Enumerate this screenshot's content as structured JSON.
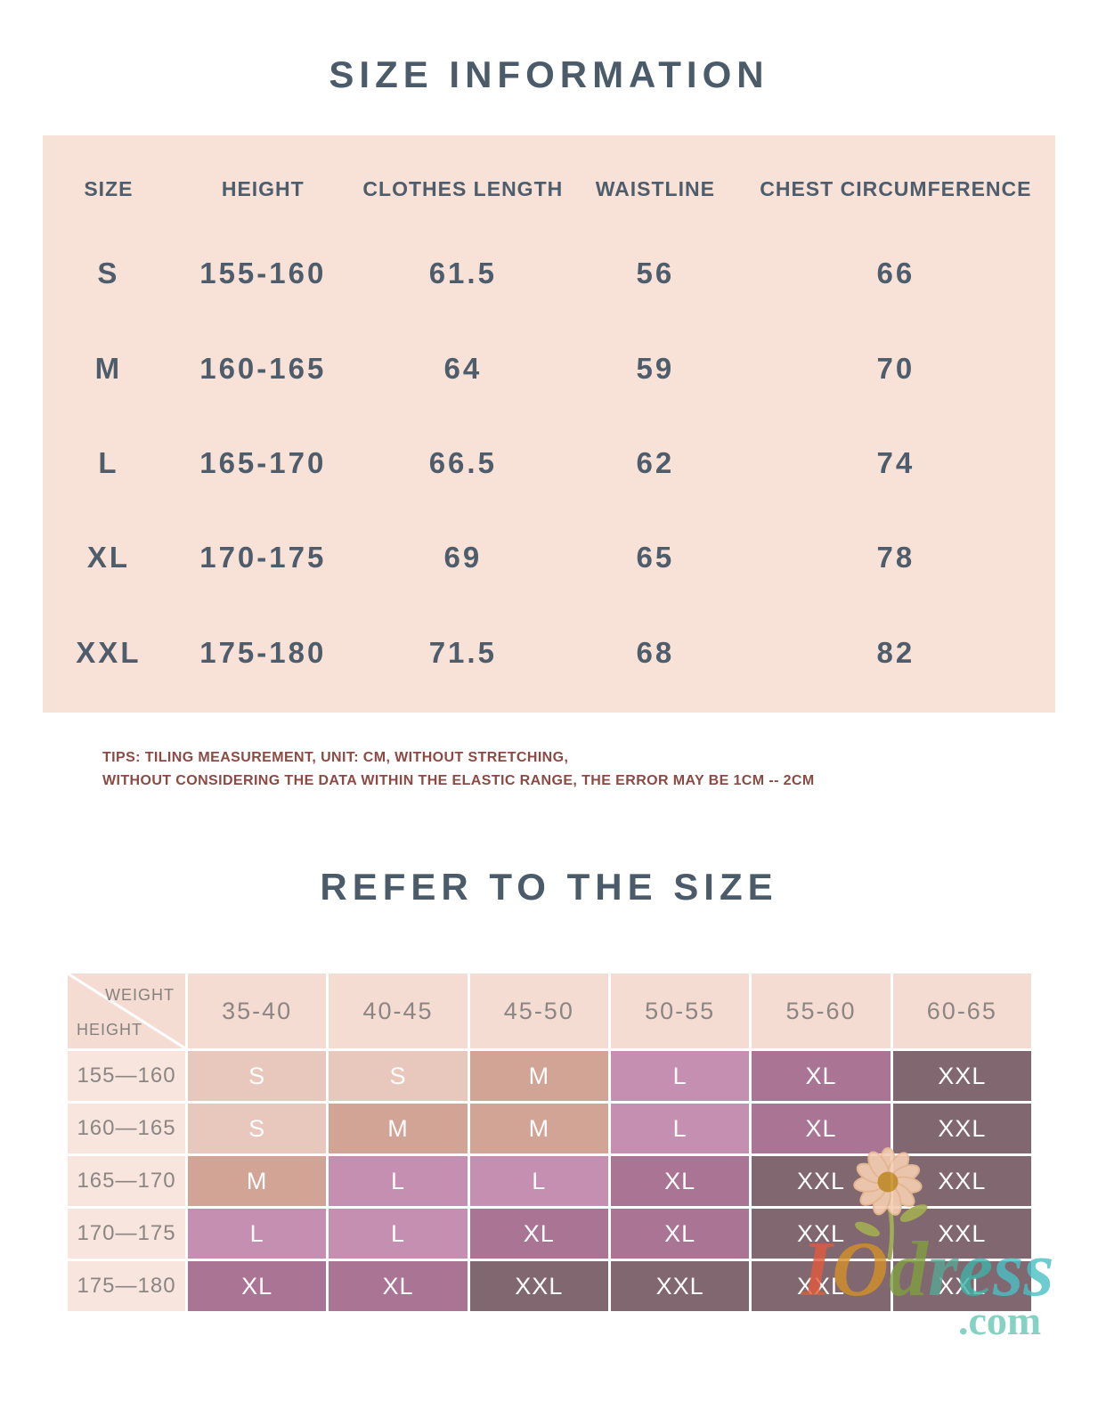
{
  "section1": {
    "title": "SIZE INFORMATION",
    "table": {
      "headers": [
        "SIZE",
        "HEIGHT",
        "CLOTHES LENGTH",
        "WAISTLINE",
        "CHEST CIRCUMFERENCE"
      ],
      "rows": [
        [
          "S",
          "155-160",
          "61.5",
          "56",
          "66"
        ],
        [
          "M",
          "160-165",
          "64",
          "59",
          "70"
        ],
        [
          "L",
          "165-170",
          "66.5",
          "62",
          "74"
        ],
        [
          "XL",
          "170-175",
          "69",
          "65",
          "78"
        ],
        [
          "XXL",
          "175-180",
          "71.5",
          "68",
          "82"
        ]
      ]
    },
    "tips_line1": "TIPS: TILING MEASUREMENT, UNIT: CM, WITHOUT STRETCHING,",
    "tips_line2": "WITHOUT CONSIDERING THE DATA WITHIN THE ELASTIC RANGE, THE ERROR MAY BE 1CM -- 2CM"
  },
  "section2": {
    "title": "REFER TO THE SIZE",
    "table": {
      "corner_top": "WEIGHT",
      "corner_bottom": "HEIGHT",
      "weight_columns": [
        "35-40",
        "40-45",
        "45-50",
        "50-55",
        "55-60",
        "60-65"
      ],
      "rows": [
        {
          "height": "155—160",
          "sizes": [
            "S",
            "S",
            "M",
            "L",
            "XL",
            "XXL"
          ]
        },
        {
          "height": "160—165",
          "sizes": [
            "S",
            "M",
            "M",
            "L",
            "XL",
            "XXL"
          ]
        },
        {
          "height": "165—170",
          "sizes": [
            "M",
            "L",
            "L",
            "XL",
            "XXL",
            "XXL"
          ]
        },
        {
          "height": "170—175",
          "sizes": [
            "L",
            "L",
            "XL",
            "XL",
            "XXL",
            "XXL"
          ]
        },
        {
          "height": "175—180",
          "sizes": [
            "XL",
            "XL",
            "XXL",
            "XXL",
            "XXL",
            "XXL"
          ]
        }
      ],
      "size_colors": {
        "S": "#e8c7bc",
        "M": "#d2a496",
        "L": "#c48fb1",
        "XL": "#aa7495",
        "XXL": "#81676f"
      }
    }
  },
  "watermark": {
    "brand_letters": [
      {
        "ch": "I",
        "color": "#e25a3c"
      },
      {
        "ch": "O",
        "color": "#d49127"
      },
      {
        "ch": "d",
        "color": "#7fa03f"
      },
      {
        "ch": "r",
        "color": "#57a795"
      },
      {
        "ch": "e",
        "color": "#3fb3a8"
      },
      {
        "ch": "s",
        "color": "#49c0c4"
      },
      {
        "ch": "s",
        "color": "#49c0c4"
      }
    ],
    "suffix": ".com",
    "suffix_color": "#67c7b4"
  },
  "colors": {
    "title_text": "#4b5b6a",
    "table1_bg": "#f8e2d8",
    "table1_text": "#4e5d6c",
    "tips_text": "#8c4a44",
    "matrix_header_bg": "#f4dcd3",
    "matrix_rowlabel_bg": "#f8e5dd",
    "matrix_gray_text": "#8b8683",
    "matrix_cell_text": "#fdfdfd"
  }
}
